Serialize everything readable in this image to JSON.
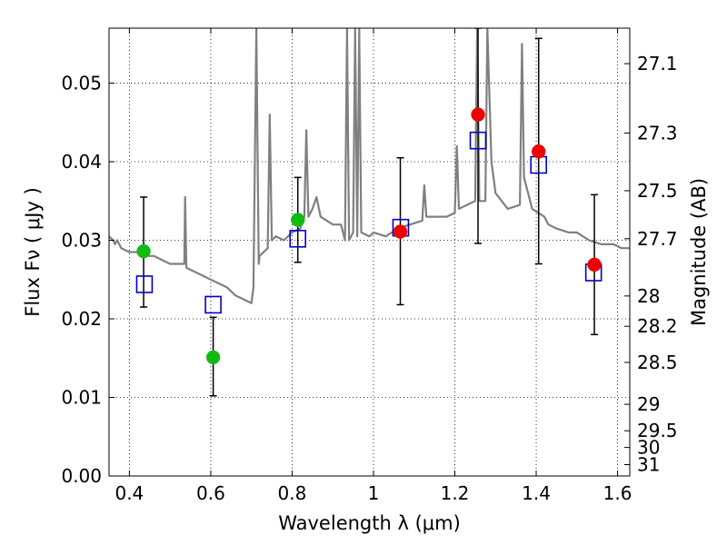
{
  "chart_data": {
    "type": "scatter",
    "title": "",
    "xlabel": "Wavelength  λ (μm)",
    "ylabel": "Flux  Fν  ( μJy )",
    "y2label": "Magnitude (AB)",
    "xlim": [
      0.35,
      1.63
    ],
    "ylim": [
      0.0,
      0.057
    ],
    "grid": true,
    "x_ticks": [
      0.4,
      0.6,
      0.8,
      1.0,
      1.2,
      1.4,
      1.6
    ],
    "x_tick_labels": [
      "0.4",
      "0.6",
      "0.8",
      "1",
      "1.2",
      "1.4",
      "1.6"
    ],
    "y_ticks": [
      0.0,
      0.01,
      0.02,
      0.03,
      0.04,
      0.05
    ],
    "y_tick_labels": [
      "0.00",
      "0.01",
      "0.02",
      "0.03",
      "0.04",
      "0.05"
    ],
    "y2_ticks": [
      "27.1",
      "27.3",
      "27.5",
      "27.7",
      "28",
      "28.2",
      "28.5",
      "29",
      "29.5",
      "30",
      "31"
    ],
    "series": [
      {
        "type": "line",
        "color": "#808080",
        "points": [
          [
            0.35,
            0.0305
          ],
          [
            0.36,
            0.03
          ],
          [
            0.365,
            0.0295
          ],
          [
            0.37,
            0.03
          ],
          [
            0.38,
            0.029
          ],
          [
            0.4,
            0.0285
          ],
          [
            0.42,
            0.0285
          ],
          [
            0.44,
            0.028
          ],
          [
            0.46,
            0.028
          ],
          [
            0.48,
            0.0275
          ],
          [
            0.5,
            0.027
          ],
          [
            0.52,
            0.027
          ],
          [
            0.535,
            0.027
          ],
          [
            0.537,
            0.0355
          ],
          [
            0.54,
            0.0265
          ],
          [
            0.56,
            0.026
          ],
          [
            0.58,
            0.0255
          ],
          [
            0.6,
            0.025
          ],
          [
            0.62,
            0.0245
          ],
          [
            0.64,
            0.024
          ],
          [
            0.66,
            0.023
          ],
          [
            0.68,
            0.0225
          ],
          [
            0.7,
            0.022
          ],
          [
            0.705,
            0.024
          ],
          [
            0.712,
            0.057
          ],
          [
            0.718,
            0.027
          ],
          [
            0.72,
            0.028
          ],
          [
            0.74,
            0.029
          ],
          [
            0.745,
            0.046
          ],
          [
            0.75,
            0.03
          ],
          [
            0.76,
            0.0305
          ],
          [
            0.78,
            0.03
          ],
          [
            0.8,
            0.031
          ],
          [
            0.82,
            0.0315
          ],
          [
            0.83,
            0.033
          ],
          [
            0.835,
            0.044
          ],
          [
            0.84,
            0.033
          ],
          [
            0.85,
            0.034
          ],
          [
            0.86,
            0.0355
          ],
          [
            0.87,
            0.033
          ],
          [
            0.9,
            0.032
          ],
          [
            0.92,
            0.032
          ],
          [
            0.93,
            0.03
          ],
          [
            0.935,
            0.057
          ],
          [
            0.94,
            0.03
          ],
          [
            0.95,
            0.031
          ],
          [
            0.955,
            0.057
          ],
          [
            0.96,
            0.0305
          ],
          [
            0.965,
            0.057
          ],
          [
            0.97,
            0.031
          ],
          [
            0.99,
            0.0305
          ],
          [
            1.0,
            0.031
          ],
          [
            1.03,
            0.0305
          ],
          [
            1.06,
            0.0315
          ],
          [
            1.09,
            0.032
          ],
          [
            1.12,
            0.0325
          ],
          [
            1.125,
            0.037
          ],
          [
            1.13,
            0.033
          ],
          [
            1.16,
            0.033
          ],
          [
            1.18,
            0.033
          ],
          [
            1.2,
            0.0335
          ],
          [
            1.205,
            0.042
          ],
          [
            1.21,
            0.034
          ],
          [
            1.23,
            0.0345
          ],
          [
            1.25,
            0.035
          ],
          [
            1.255,
            0.057
          ],
          [
            1.26,
            0.035
          ],
          [
            1.275,
            0.035
          ],
          [
            1.28,
            0.057
          ],
          [
            1.29,
            0.04
          ],
          [
            1.3,
            0.036
          ],
          [
            1.33,
            0.034
          ],
          [
            1.36,
            0.0345
          ],
          [
            1.365,
            0.055
          ],
          [
            1.37,
            0.038
          ],
          [
            1.39,
            0.034
          ],
          [
            1.42,
            0.033
          ],
          [
            1.43,
            0.032
          ],
          [
            1.45,
            0.0315
          ],
          [
            1.48,
            0.031
          ],
          [
            1.5,
            0.031
          ],
          [
            1.53,
            0.03
          ],
          [
            1.56,
            0.0295
          ],
          [
            1.59,
            0.0295
          ],
          [
            1.61,
            0.029
          ],
          [
            1.63,
            0.029
          ]
        ]
      },
      {
        "type": "errorbar",
        "color": "#000000",
        "bars": [
          [
            0.435,
            0.0215,
            0.0355
          ],
          [
            0.606,
            0.0102,
            0.0202
          ],
          [
            0.814,
            0.0272,
            0.038
          ],
          [
            1.066,
            0.0218,
            0.0405
          ],
          [
            1.257,
            0.0296,
            0.057
          ],
          [
            1.406,
            0.027,
            0.0557
          ],
          [
            1.543,
            0.018,
            0.0358
          ]
        ]
      },
      {
        "type": "square",
        "color": "#0000cc",
        "points": [
          [
            0.437,
            0.0244
          ],
          [
            0.606,
            0.0218
          ],
          [
            0.814,
            0.0302
          ],
          [
            1.067,
            0.0316
          ],
          [
            1.257,
            0.0427
          ],
          [
            1.406,
            0.0396
          ],
          [
            1.541,
            0.0259
          ]
        ]
      },
      {
        "type": "circle",
        "color": "#11bb11",
        "points": [
          [
            0.435,
            0.0286
          ],
          [
            0.606,
            0.0151
          ],
          [
            0.814,
            0.0326
          ]
        ]
      },
      {
        "type": "circle",
        "color": "#ee0000",
        "points": [
          [
            1.066,
            0.0311
          ],
          [
            1.257,
            0.046
          ],
          [
            1.406,
            0.0413
          ],
          [
            1.543,
            0.0269
          ]
        ]
      }
    ]
  }
}
